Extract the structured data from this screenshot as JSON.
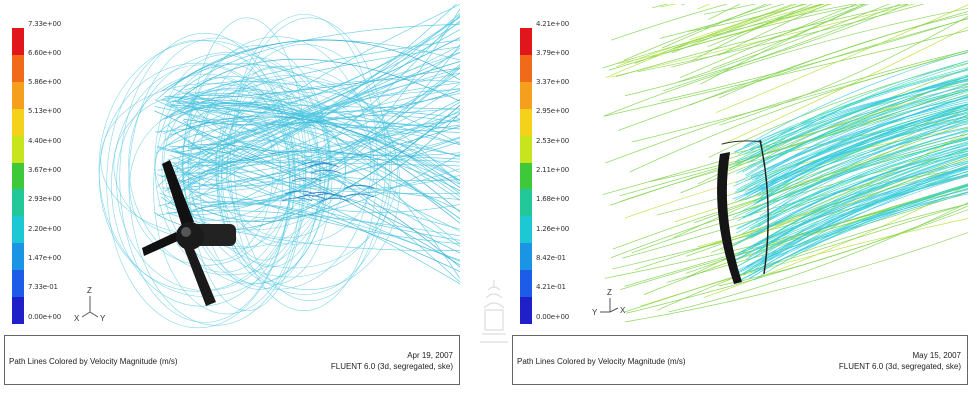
{
  "panels": [
    {
      "colorbar_labels": [
        "7.33e+00",
        "6.60e+00",
        "5.86e+00",
        "5.13e+00",
        "4.40e+00",
        "3.67e+00",
        "2.93e+00",
        "2.20e+00",
        "1.47e+00",
        "7.33e-01",
        "0.00e+00"
      ],
      "axis_labels": {
        "z": "Z",
        "x": "X",
        "y": "Y"
      },
      "caption_title": "Path Lines Colored by Velocity Magnitude (m/s)",
      "caption_date": "Apr 19, 2007",
      "caption_solver": "FLUENT 6.0 (3d, segregated, ske)",
      "pathline_color": "#4ec6e0"
    },
    {
      "colorbar_labels": [
        "4.21e+00",
        "3.79e+00",
        "3.37e+00",
        "2.95e+00",
        "2.53e+00",
        "2.11e+00",
        "1.68e+00",
        "1.26e+00",
        "8.42e-01",
        "4.21e-01",
        "0.00e+00"
      ],
      "axis_labels": {
        "z": "Z",
        "x": "X",
        "y": "Y"
      },
      "caption_title": "Path Lines Colored by Velocity Magnitude (m/s)",
      "caption_date": "May 15, 2007",
      "caption_solver": "FLUENT 6.0 (3d, segregated, ske)",
      "pathline_color": "#7ed24a"
    }
  ],
  "colorbar_colors": [
    "#e0161c",
    "#f06a1a",
    "#f5a01c",
    "#f4d21c",
    "#c8e41c",
    "#3ec83a",
    "#22c79a",
    "#1cc8d4",
    "#1c94e6",
    "#1c5ce8",
    "#2020c8"
  ]
}
